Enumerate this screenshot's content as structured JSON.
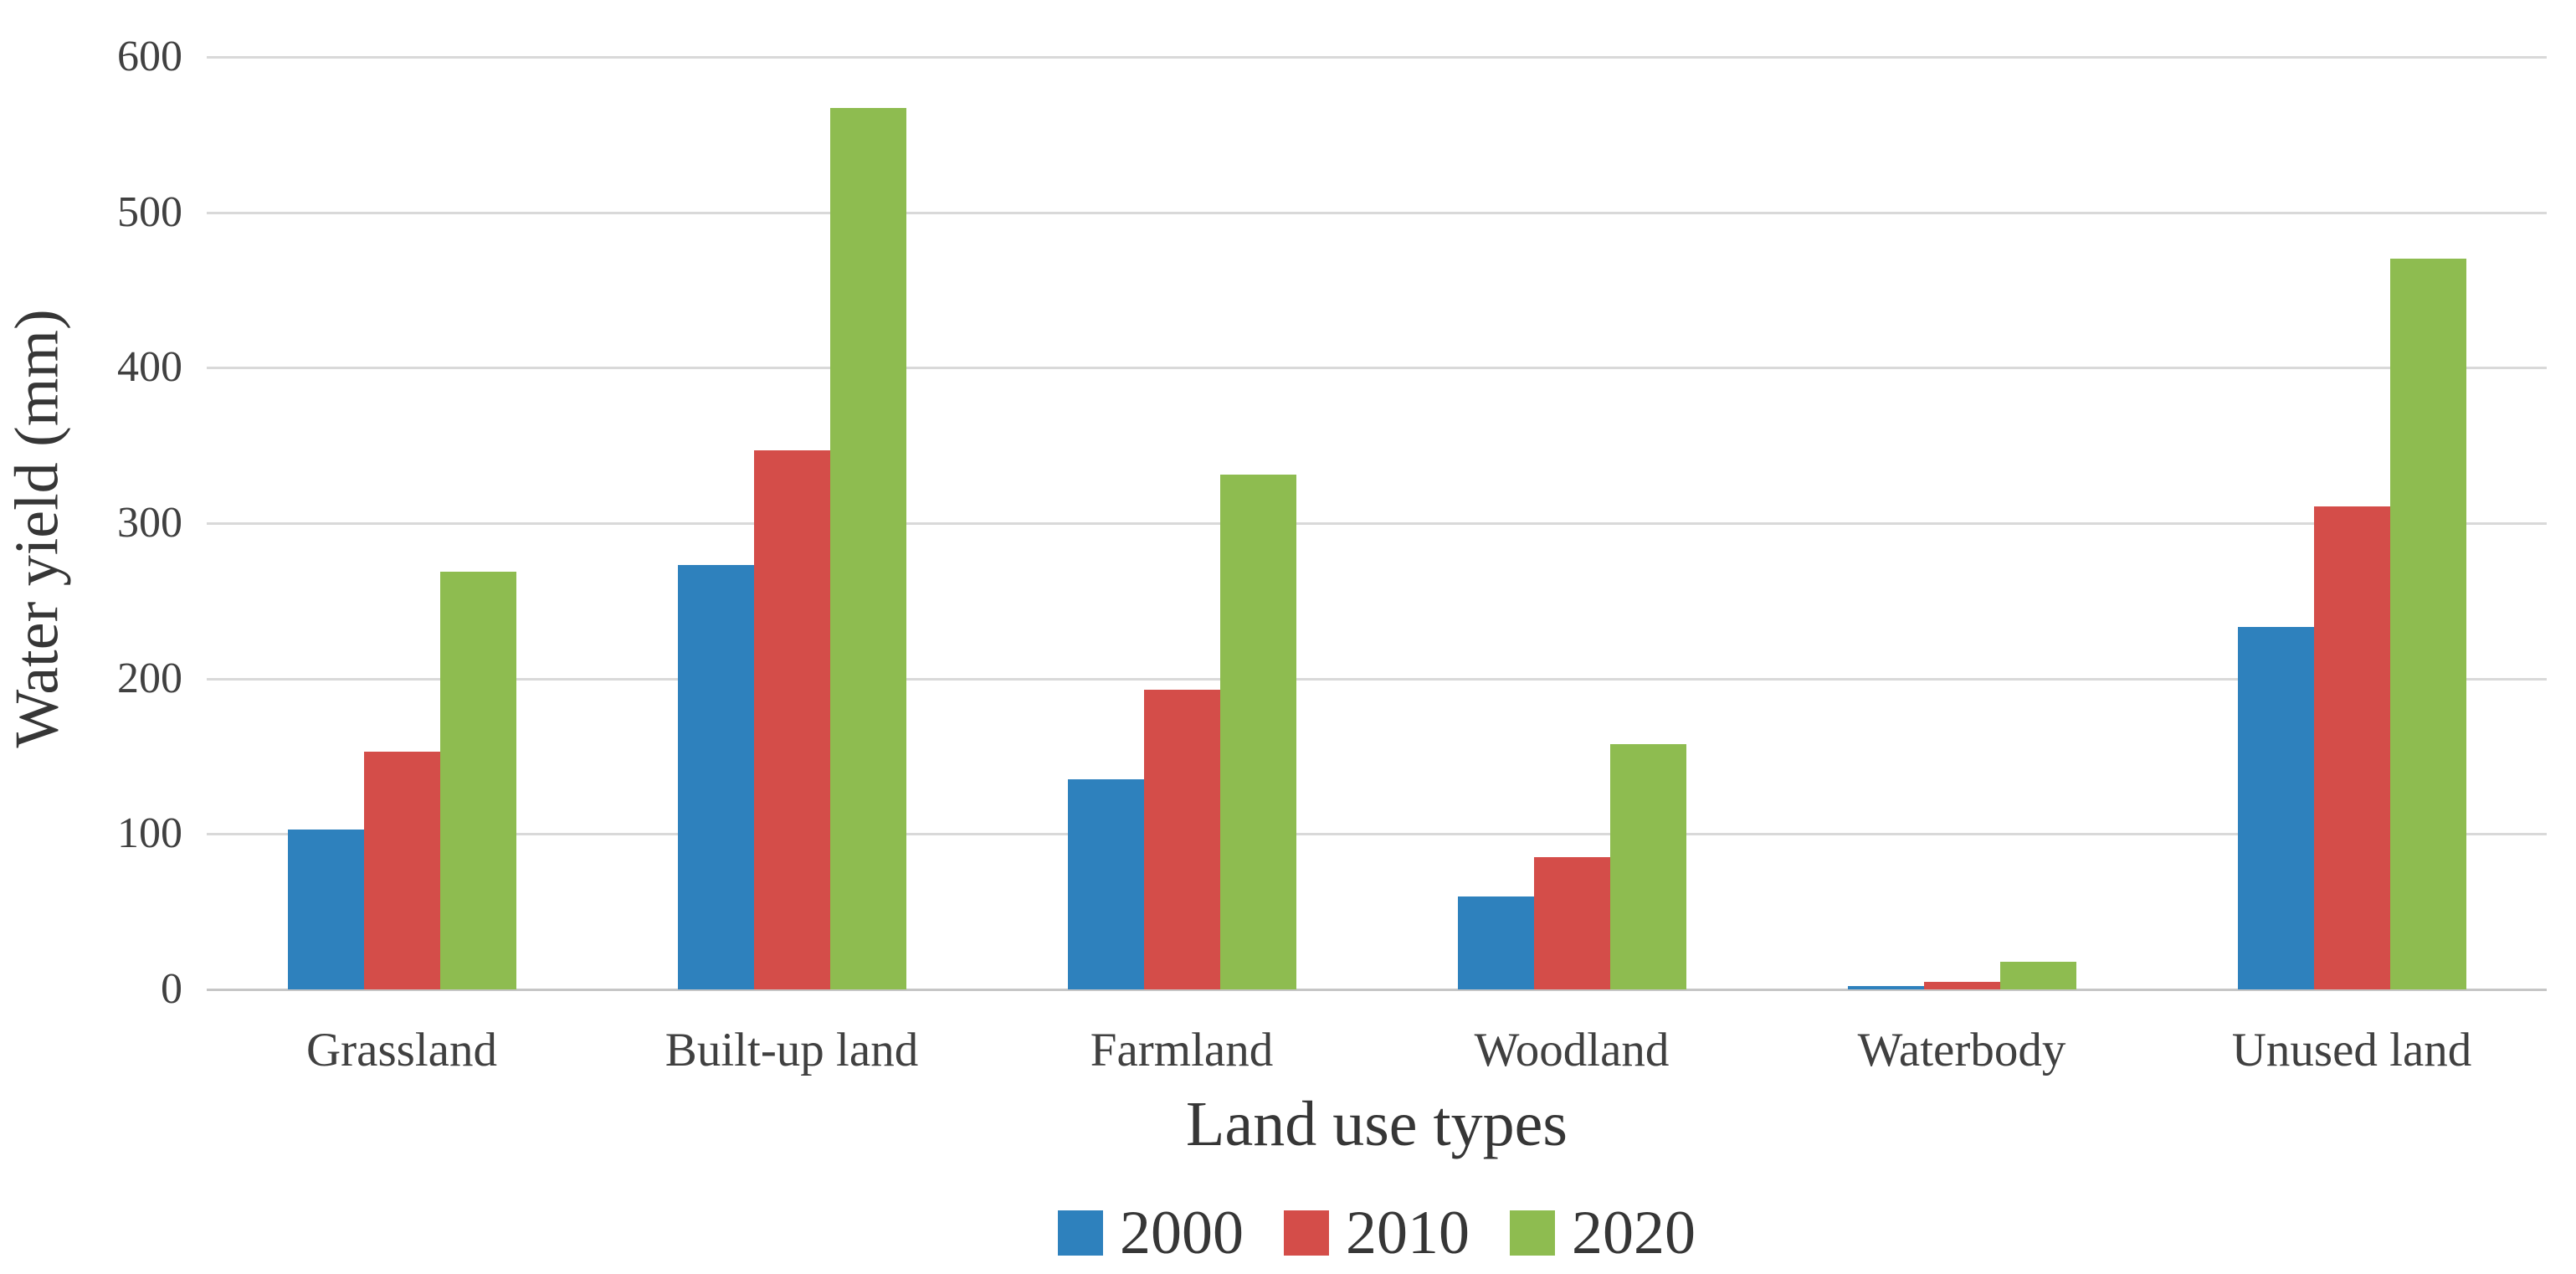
{
  "chart_data": {
    "type": "bar",
    "title": "",
    "xlabel": "Land use types",
    "ylabel": "Water yield (mm)",
    "categories": [
      "Grassland",
      "Built-up land",
      "Farmland",
      "Woodland",
      "Waterbody",
      "Unused land"
    ],
    "series": [
      {
        "name": "2000",
        "color": "#2e81bd",
        "values": [
          103,
          273,
          135,
          60,
          2,
          233
        ]
      },
      {
        "name": "2010",
        "color": "#d44d49",
        "values": [
          153,
          347,
          193,
          85,
          5,
          311
        ]
      },
      {
        "name": "2020",
        "color": "#8ebc50",
        "values": [
          269,
          567,
          331,
          158,
          18,
          470
        ]
      }
    ],
    "ylim": [
      0,
      600
    ],
    "ytick_step": 100,
    "yticks": [
      "0",
      "100",
      "200",
      "300",
      "400",
      "500",
      "600"
    ],
    "grid": true,
    "gridline_color": "#d9d9d9",
    "legend_position": "bottom",
    "legend_labels": [
      "2000",
      "2010",
      "2020"
    ],
    "text_color": "#404040"
  }
}
